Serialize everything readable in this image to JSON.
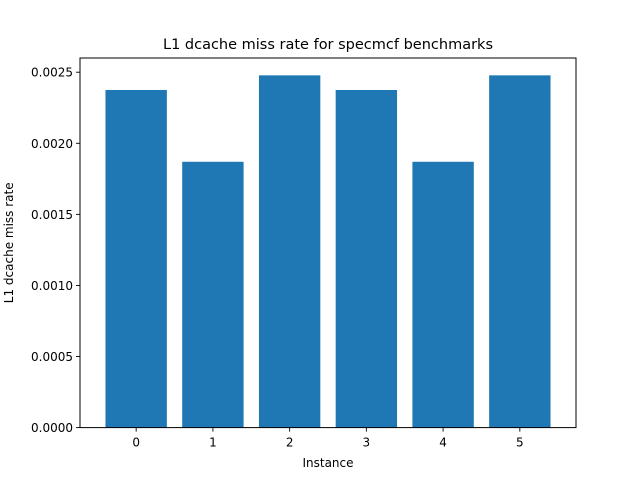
{
  "chart_data": {
    "type": "bar",
    "title": "L1 dcache miss rate for specmcf benchmarks",
    "xlabel": "Instance",
    "ylabel": "L1 dcache miss rate",
    "categories": [
      "0",
      "1",
      "2",
      "3",
      "4",
      "5"
    ],
    "values": [
      0.002375,
      0.00187,
      0.002478,
      0.002375,
      0.00187,
      0.002478
    ],
    "ylim": [
      0,
      0.0026
    ],
    "yticks": [
      0,
      0.0005,
      0.001,
      0.0015,
      0.002,
      0.0025
    ],
    "ytick_labels": [
      "0.0000",
      "0.0005",
      "0.0010",
      "0.0015",
      "0.0020",
      "0.0025"
    ],
    "bar_color": "#1f77b4",
    "grid": false,
    "legend": "none"
  }
}
